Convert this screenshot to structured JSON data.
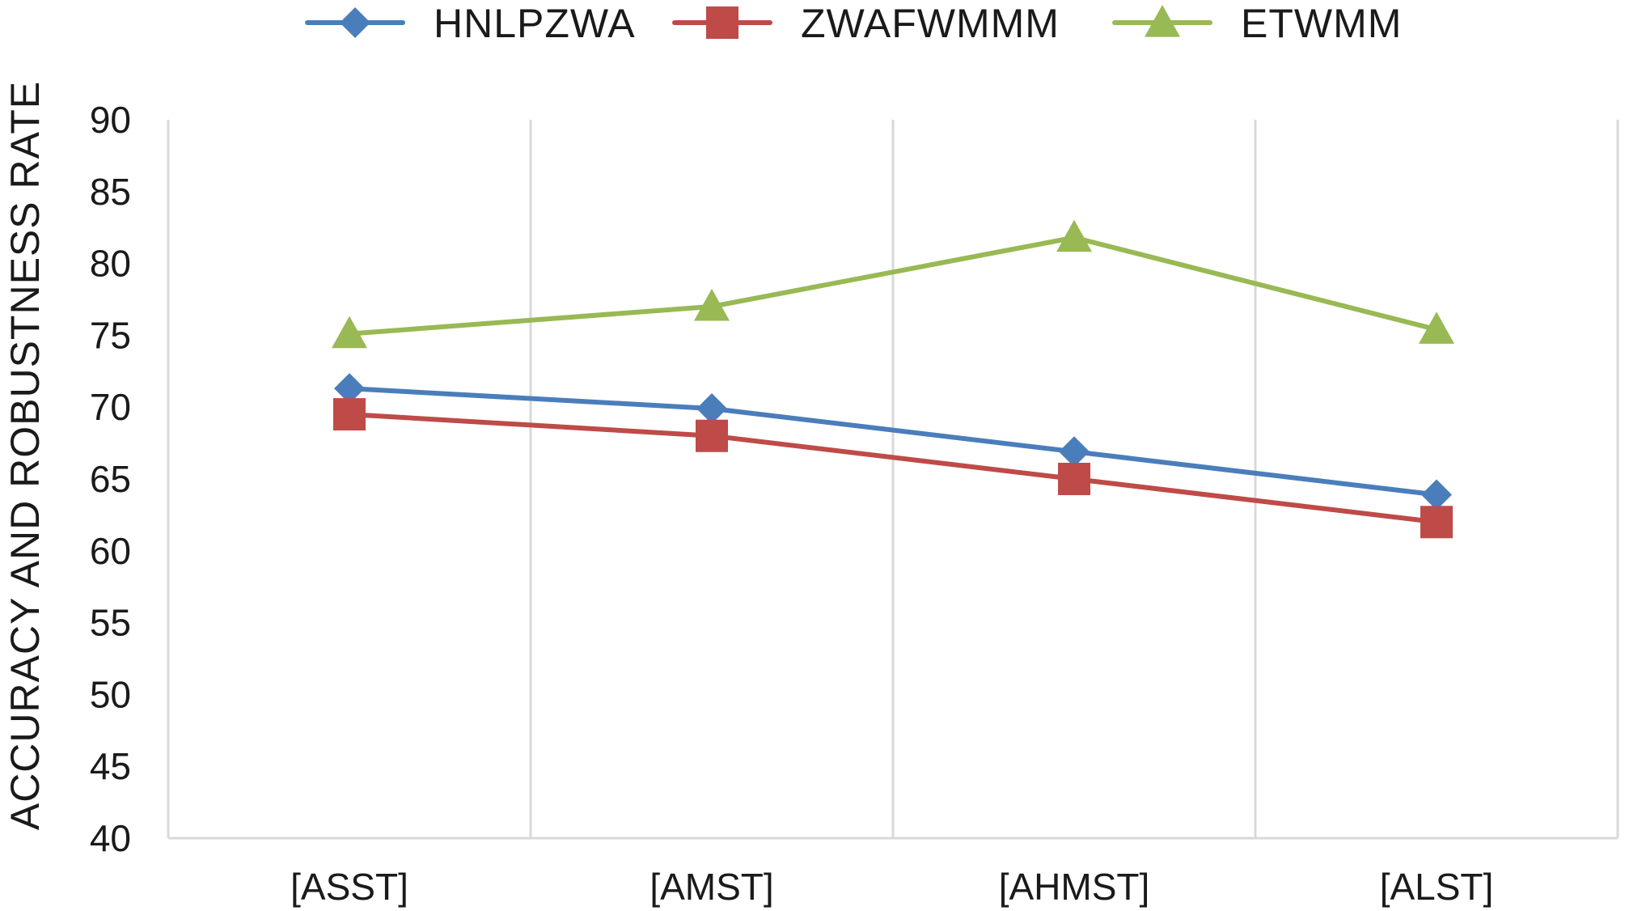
{
  "chart_data": {
    "type": "line",
    "title": "",
    "xlabel": "",
    "ylabel": "ACCURACY AND ROBUSTNESS RATE",
    "ylim": [
      40,
      90
    ],
    "yticks": [
      "40",
      "45",
      "50",
      "55",
      "60",
      "65",
      "70",
      "75",
      "80",
      "85",
      "90"
    ],
    "categories": [
      "[ASST]",
      "[AMST]",
      "[AHMST]",
      "[ALST]"
    ],
    "grid": "vertical",
    "legend": "top-center",
    "series": [
      {
        "name": "HNLPZWA",
        "color": "#4a7ebb",
        "marker": "diamond",
        "values": [
          71.3,
          69.9,
          66.9,
          63.9
        ]
      },
      {
        "name": "ZWAFWMMM",
        "color": "#be4b48",
        "marker": "square",
        "values": [
          69.5,
          68.0,
          65.0,
          62.0
        ]
      },
      {
        "name": "ETWMM",
        "color": "#98b954",
        "marker": "triangle",
        "values": [
          75.1,
          77.0,
          81.8,
          75.4
        ]
      }
    ]
  }
}
